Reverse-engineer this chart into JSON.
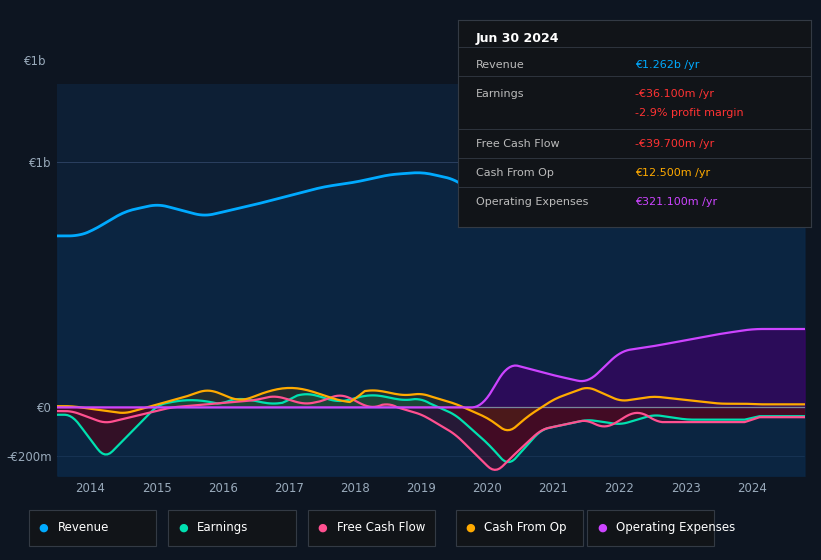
{
  "bg_color": "#0d1521",
  "plot_bg_color": "#0d1f35",
  "legend_items": [
    {
      "label": "Revenue",
      "color": "#00aaff"
    },
    {
      "label": "Earnings",
      "color": "#00e0b0"
    },
    {
      "label": "Free Cash Flow",
      "color": "#ff5090"
    },
    {
      "label": "Cash From Op",
      "color": "#ffaa00"
    },
    {
      "label": "Operating Expenses",
      "color": "#cc44ff"
    }
  ],
  "info_box": {
    "title": "Jun 30 2024",
    "rows": [
      {
        "label": "Revenue",
        "value": "€1.262b /yr",
        "value_color": "#00aaff",
        "bold_value": true
      },
      {
        "label": "Earnings",
        "value": "-€36.100m /yr",
        "value_color": "#ff3333",
        "bold_value": false
      },
      {
        "label": "",
        "value": "-2.9% profit margin",
        "value_color": "#ff3333",
        "bold_value": false
      },
      {
        "label": "Free Cash Flow",
        "value": "-€39.700m /yr",
        "value_color": "#ff3333",
        "bold_value": false
      },
      {
        "label": "Cash From Op",
        "value": "€12.500m /yr",
        "value_color": "#ffaa00",
        "bold_value": false
      },
      {
        "label": "Operating Expenses",
        "value": "€321.100m /yr",
        "value_color": "#cc44ff",
        "bold_value": false
      }
    ]
  },
  "xmin": 2013.5,
  "xmax": 2024.8,
  "ymin": -280,
  "ymax": 1320,
  "ytick_vals": [
    1000,
    0,
    -200
  ],
  "ytick_labels": [
    "€1b",
    "€0",
    "-€200m"
  ],
  "xticks": [
    2014,
    2015,
    2016,
    2017,
    2018,
    2019,
    2020,
    2021,
    2022,
    2023,
    2024
  ]
}
